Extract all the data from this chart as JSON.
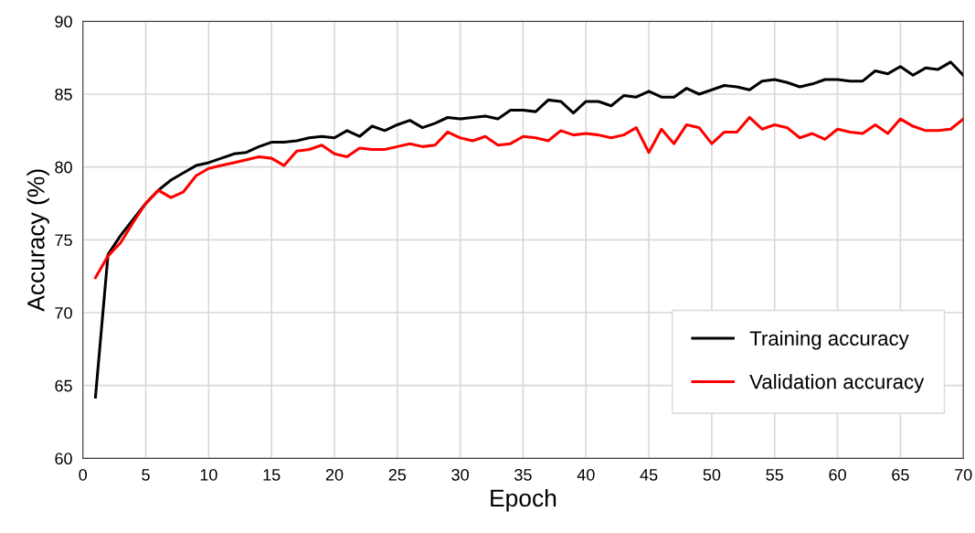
{
  "chart_data": {
    "type": "line",
    "xlabel": "Epoch",
    "ylabel": "Accuracy (%)",
    "x": [
      1,
      2,
      3,
      4,
      5,
      6,
      7,
      8,
      9,
      10,
      11,
      12,
      13,
      14,
      15,
      16,
      17,
      18,
      19,
      20,
      21,
      22,
      23,
      24,
      25,
      26,
      27,
      28,
      29,
      30,
      31,
      32,
      33,
      34,
      35,
      36,
      37,
      38,
      39,
      40,
      41,
      42,
      43,
      44,
      45,
      46,
      47,
      48,
      49,
      50,
      51,
      52,
      53,
      54,
      55,
      56,
      57,
      58,
      59,
      60,
      61,
      62,
      63,
      64,
      65,
      66,
      67,
      68,
      69,
      70
    ],
    "series": [
      {
        "name": "Training accuracy",
        "color": "#000000",
        "values": [
          64.2,
          74.0,
          75.3,
          76.4,
          77.5,
          78.4,
          79.1,
          79.6,
          80.1,
          80.3,
          80.6,
          80.9,
          81.0,
          81.4,
          81.7,
          81.7,
          81.8,
          82.0,
          82.1,
          82.0,
          82.5,
          82.1,
          82.8,
          82.5,
          82.9,
          83.2,
          82.7,
          83.0,
          83.4,
          83.3,
          83.4,
          83.5,
          83.3,
          83.9,
          83.9,
          83.8,
          84.6,
          84.5,
          83.7,
          84.5,
          84.5,
          84.2,
          84.9,
          84.8,
          85.2,
          84.8,
          84.8,
          85.4,
          85.0,
          85.3,
          85.6,
          85.5,
          85.3,
          85.9,
          86.0,
          85.8,
          85.5,
          85.7,
          86.0,
          86.0,
          85.9,
          85.9,
          86.6,
          86.4,
          86.9,
          86.3,
          86.8,
          86.7,
          87.2,
          86.3
        ]
      },
      {
        "name": "Validation accuracy",
        "color": "#ff0000",
        "values": [
          72.4,
          73.9,
          74.8,
          76.2,
          77.5,
          78.4,
          77.9,
          78.3,
          79.4,
          79.9,
          80.1,
          80.3,
          80.5,
          80.7,
          80.6,
          80.1,
          81.1,
          81.2,
          81.5,
          80.9,
          80.7,
          81.3,
          81.2,
          81.2,
          81.4,
          81.6,
          81.4,
          81.5,
          82.4,
          82.0,
          81.8,
          82.1,
          81.5,
          81.6,
          82.1,
          82.0,
          81.8,
          82.5,
          82.2,
          82.3,
          82.2,
          82.0,
          82.2,
          82.7,
          81.0,
          82.6,
          81.6,
          82.9,
          82.7,
          81.6,
          82.4,
          82.4,
          83.4,
          82.6,
          82.9,
          82.7,
          82.0,
          82.3,
          81.9,
          82.6,
          82.4,
          82.3,
          82.9,
          82.3,
          83.3,
          82.8,
          82.5,
          82.5,
          82.6,
          83.3
        ]
      }
    ],
    "xlim": [
      0,
      70
    ],
    "xticks": [
      0,
      5,
      10,
      15,
      20,
      25,
      30,
      35,
      40,
      45,
      50,
      55,
      60,
      65,
      70
    ],
    "ylim": [
      60,
      90
    ],
    "yticks": [
      60,
      65,
      70,
      75,
      80,
      85,
      90
    ],
    "grid": true,
    "legend": "bottom right",
    "marker": "none",
    "line_style": "solid"
  }
}
